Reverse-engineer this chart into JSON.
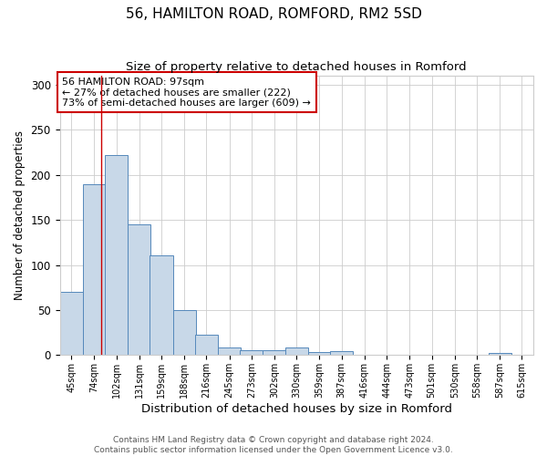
{
  "title1": "56, HAMILTON ROAD, ROMFORD, RM2 5SD",
  "title2": "Size of property relative to detached houses in Romford",
  "xlabel": "Distribution of detached houses by size in Romford",
  "ylabel": "Number of detached properties",
  "annotation_line1": "56 HAMILTON ROAD: 97sqm",
  "annotation_line2": "← 27% of detached houses are smaller (222)",
  "annotation_line3": "73% of semi-detached houses are larger (609) →",
  "footnote1": "Contains HM Land Registry data © Crown copyright and database right 2024.",
  "footnote2": "Contains public sector information licensed under the Open Government Licence v3.0.",
  "bar_edges": [
    45,
    74,
    102,
    131,
    159,
    188,
    216,
    245,
    273,
    302,
    330,
    359,
    387,
    416,
    444,
    473,
    501,
    530,
    558,
    587,
    615
  ],
  "bar_heights": [
    70,
    190,
    222,
    145,
    111,
    50,
    23,
    9,
    6,
    5,
    9,
    3,
    4,
    0,
    0,
    0,
    0,
    0,
    0,
    2,
    0
  ],
  "bar_color": "#c8d8e8",
  "bar_edge_color": "#5588bb",
  "vline_x": 97,
  "vline_color": "#cc0000",
  "annotation_box_color": "#cc0000",
  "ylim": [
    0,
    310
  ],
  "yticks": [
    0,
    50,
    100,
    150,
    200,
    250,
    300
  ],
  "background_color": "#ffffff",
  "grid_color": "#cccccc",
  "title1_fontsize": 11,
  "title2_fontsize": 9.5,
  "xlabel_fontsize": 9.5,
  "ylabel_fontsize": 8.5,
  "annotation_fontsize": 8,
  "footnote_fontsize": 6.5
}
